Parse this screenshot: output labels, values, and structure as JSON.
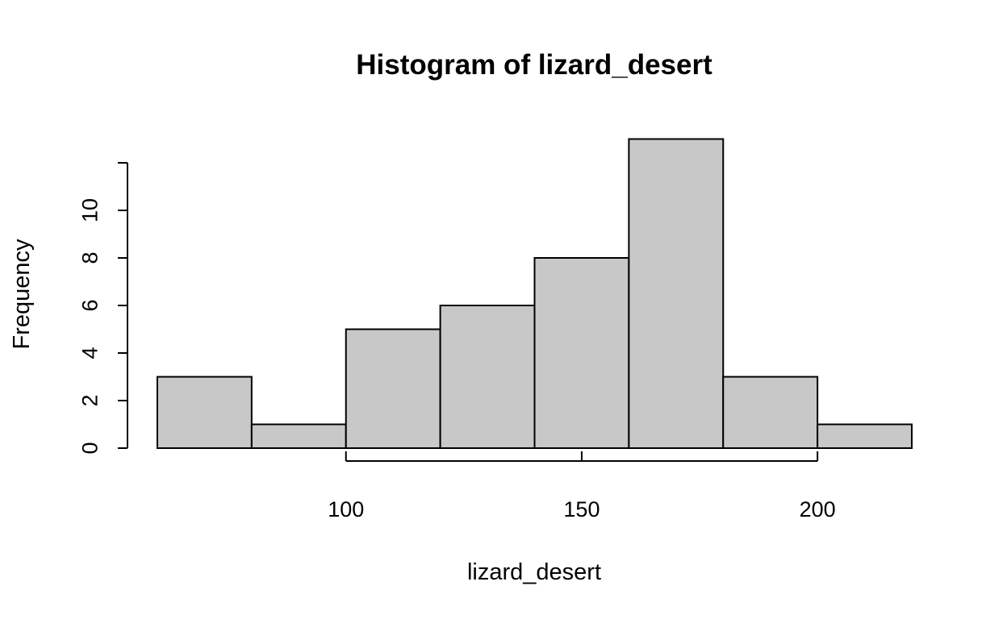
{
  "chart_data": {
    "type": "bar",
    "subtype": "histogram",
    "title": "Histogram of lizard_desert",
    "xlabel": "lizard_desert",
    "ylabel": "Frequency",
    "bins": [
      {
        "start": 60,
        "end": 80,
        "count": 3
      },
      {
        "start": 80,
        "end": 100,
        "count": 1
      },
      {
        "start": 100,
        "end": 120,
        "count": 5
      },
      {
        "start": 120,
        "end": 140,
        "count": 6
      },
      {
        "start": 140,
        "end": 160,
        "count": 8
      },
      {
        "start": 160,
        "end": 180,
        "count": 13
      },
      {
        "start": 180,
        "end": 200,
        "count": 3
      },
      {
        "start": 200,
        "end": 220,
        "count": 1
      }
    ],
    "x_ticks": [
      100,
      150,
      200
    ],
    "x_tick_labels": [
      "100",
      "150",
      "200"
    ],
    "y_ticks": [
      0,
      2,
      4,
      6,
      8,
      10,
      12
    ],
    "y_tick_labels": [
      "0",
      "2",
      "4",
      "6",
      "8",
      "10",
      ""
    ],
    "xlim": [
      60,
      220
    ],
    "ylim": [
      0,
      13
    ],
    "grid": false,
    "bar_color": "#c8c8c8",
    "edge_color": "#000000"
  }
}
